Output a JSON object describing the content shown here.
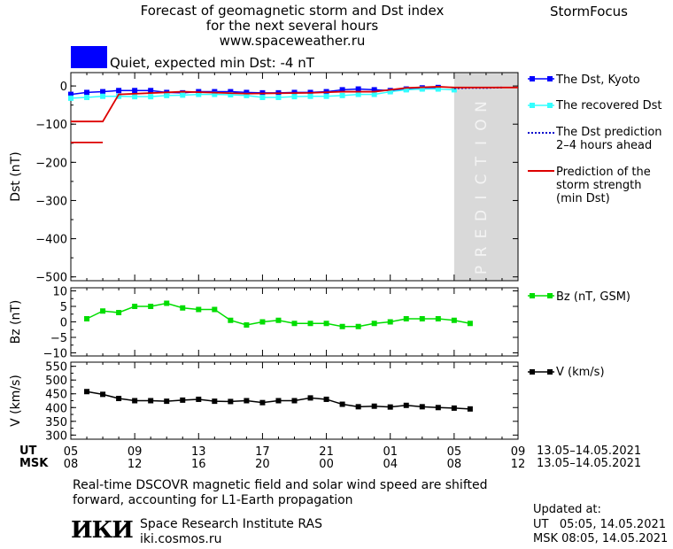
{
  "header": {
    "title_line1": "Forecast of geomagnetic storm and Dst index",
    "title_line2": "for the next several hours",
    "url": "www.spaceweather.ru",
    "brand": "StormFocus",
    "status_text": "Quiet, expected min Dst: -4 nT",
    "status_color": "#0000ff"
  },
  "colors": {
    "dst_kyoto": "#0000ff",
    "dst_recovered": "#33ffff",
    "dst_prediction": "#0000cc",
    "storm_strength": "#dd0000",
    "bz": "#00dd00",
    "v": "#000000",
    "prediction_band": "#d9d9d9"
  },
  "legend": {
    "dst_kyoto": "The Dst, Kyoto",
    "dst_recovered": "The recovered Dst",
    "dst_pred_l1": "The Dst prediction",
    "dst_pred_l2": "2–4 hours ahead",
    "storm_l1": "Prediction of the",
    "storm_l2": "storm strength",
    "storm_l3": "(min Dst)",
    "bz": "Bz (nT, GSM)",
    "v": "V (km/s)"
  },
  "prediction_label": "PREDICTION",
  "time_axis": {
    "ut_label": "UT",
    "msk_label": "MSK",
    "ut_ticks": [
      "05",
      "09",
      "13",
      "17",
      "21",
      "01",
      "05",
      "09"
    ],
    "msk_ticks": [
      "08",
      "12",
      "16",
      "20",
      "00",
      "04",
      "08",
      "12"
    ],
    "ut_date": "13.05–14.05.2021",
    "msk_date": "13.05–14.05.2021"
  },
  "footer": {
    "note_line1": "Real-time DSCOVR magnetic field and solar wind speed are shifted",
    "note_line2": "forward, accounting for L1-Earth propagation",
    "institute": "Space Research Institute RAS",
    "site": "iki.cosmos.ru",
    "logo_text": "ИКИ",
    "updated_label": "Updated at:",
    "updated_ut": "UT   05:05, 14.05.2021",
    "updated_msk": "MSK 08:05, 14.05.2021"
  },
  "chart_data": [
    {
      "type": "line",
      "ylabel": "Dst (nT)",
      "ylim": [
        -510,
        35
      ],
      "yticks": [
        0,
        -100,
        -200,
        -300,
        -400,
        -500
      ],
      "xlim": [
        5,
        33
      ],
      "prediction_range": [
        29,
        33
      ],
      "series": [
        {
          "name": "The Dst, Kyoto",
          "x": [
            5,
            6,
            7,
            8,
            9,
            10,
            11,
            12,
            13,
            14,
            15,
            16,
            17,
            18,
            19,
            20,
            21,
            22,
            23,
            24,
            25,
            26,
            27,
            28,
            29
          ],
          "y": [
            -32,
            -30,
            -27,
            -27,
            -28,
            -28,
            -25,
            -24,
            -22,
            -22,
            -23,
            -25,
            -30,
            -30,
            -28,
            -27,
            -27,
            -25,
            -22,
            -22,
            -15,
            -10,
            -8,
            -8,
            -10
          ]
        },
        {
          "name": "The recovered Dst",
          "x": [
            5,
            6,
            7,
            8,
            9,
            10,
            11,
            12,
            13,
            14,
            15,
            16,
            17,
            18,
            19,
            20,
            21,
            22,
            23,
            24,
            25,
            26,
            27,
            28
          ],
          "y": [
            -22,
            -17,
            -15,
            -12,
            -12,
            -12,
            -17,
            -18,
            -15,
            -15,
            -15,
            -17,
            -18,
            -18,
            -17,
            -17,
            -15,
            -10,
            -8,
            -10,
            -12,
            -8,
            -5,
            -4
          ]
        },
        {
          "name": "The Dst prediction 2–4 hours ahead",
          "x": [
            29,
            30,
            31,
            32
          ],
          "y": [
            -6,
            -5,
            -5,
            -4
          ]
        },
        {
          "name": "Prediction of the storm strength (min Dst)",
          "x": [
            5,
            7,
            8,
            12,
            16,
            20,
            22,
            24,
            26,
            28,
            29,
            33
          ],
          "y": [
            -93,
            -93,
            -22,
            -15,
            -20,
            -18,
            -15,
            -15,
            -5,
            -2,
            -4,
            -4
          ]
        },
        {
          "name": "",
          "x": [
            5,
            7
          ],
          "y": [
            -148,
            -148
          ]
        }
      ]
    },
    {
      "type": "line",
      "ylabel": "Bz (nT)",
      "ylim": [
        -11,
        11
      ],
      "yticks": [
        10,
        5,
        0,
        -5,
        -10
      ],
      "xlim": [
        5,
        33
      ],
      "series": [
        {
          "name": "Bz (nT, GSM)",
          "x": [
            6,
            7,
            8,
            9,
            10,
            11,
            12,
            13,
            14,
            15,
            16,
            17,
            18,
            19,
            20,
            21,
            22,
            23,
            24,
            25,
            26,
            27,
            28,
            29,
            30
          ],
          "y": [
            1,
            3.5,
            3,
            5,
            5,
            6,
            4.5,
            4,
            4,
            0.5,
            -1,
            0,
            0.5,
            -0.5,
            -0.5,
            -0.5,
            -1.5,
            -1.5,
            -0.5,
            0,
            1,
            1,
            1,
            0.5,
            -0.5
          ]
        }
      ]
    },
    {
      "type": "line",
      "ylabel": "V (km/s)",
      "ylim": [
        285,
        565
      ],
      "yticks": [
        550,
        500,
        450,
        400,
        350,
        300
      ],
      "xlim": [
        5,
        33
      ],
      "series": [
        {
          "name": "V (km/s)",
          "x": [
            6,
            7,
            8,
            9,
            10,
            11,
            12,
            13,
            14,
            15,
            16,
            17,
            18,
            19,
            20,
            21,
            22,
            23,
            24,
            25,
            26,
            27,
            28,
            29,
            30
          ],
          "y": [
            458,
            448,
            433,
            425,
            425,
            423,
            427,
            430,
            423,
            422,
            425,
            418,
            425,
            425,
            435,
            430,
            412,
            403,
            405,
            402,
            408,
            403,
            400,
            398,
            395
          ]
        }
      ]
    }
  ]
}
